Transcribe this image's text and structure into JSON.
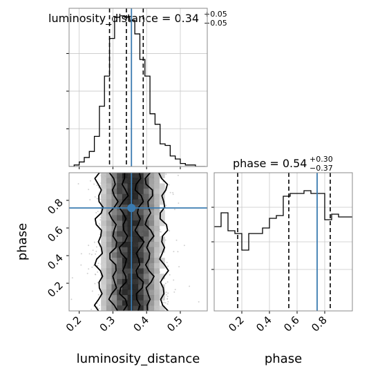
{
  "colors": {
    "truth": "#3a7bb0",
    "hist": "#000000",
    "grid": "#c8c8c8",
    "frame": "#888888",
    "points": "#9a9a9a"
  },
  "chart_data": {
    "type": "corner",
    "parameters": [
      "luminosity_distance",
      "phase"
    ],
    "truths": {
      "luminosity_distance": 0.355,
      "phase": 0.745
    },
    "panels": [
      {
        "name": "luminosity_distance-marginal",
        "type": "histogram-step",
        "title_label": "luminosity_distance = 0.34",
        "title_sup": "+0.05",
        "title_sub": "−0.05",
        "xlim": [
          0.17,
          0.58
        ],
        "bin_edges": [
          0.17,
          0.185,
          0.2,
          0.215,
          0.23,
          0.245,
          0.26,
          0.275,
          0.29,
          0.305,
          0.32,
          0.335,
          0.35,
          0.365,
          0.38,
          0.395,
          0.41,
          0.425,
          0.44,
          0.455,
          0.47,
          0.485,
          0.5,
          0.515,
          0.53,
          0.545,
          0.56,
          0.575
        ],
        "counts": [
          0,
          1,
          3,
          6,
          10,
          20,
          40,
          60,
          85,
          99,
          100,
          99,
          97,
          88,
          71,
          60,
          35,
          28,
          15,
          14,
          7,
          5,
          2,
          1,
          1,
          0,
          0
        ],
        "quantiles": [
          0.29,
          0.34,
          0.39
        ],
        "yticks": [
          25,
          50,
          75
        ]
      },
      {
        "name": "phase-marginal",
        "type": "histogram-step",
        "title_label": "phase = 0.54",
        "title_sup": "+0.30",
        "title_sub": "−0.37",
        "xlim": [
          0.0,
          1.0
        ],
        "bin_edges": [
          0.0,
          0.05,
          0.1,
          0.15,
          0.2,
          0.25,
          0.3,
          0.35,
          0.4,
          0.45,
          0.5,
          0.55,
          0.6,
          0.65,
          0.7,
          0.75,
          0.8,
          0.85,
          0.9,
          0.95,
          1.0
        ],
        "counts": [
          61,
          71,
          58,
          56,
          44,
          56,
          56,
          60,
          67,
          69,
          83,
          85,
          85,
          87,
          85,
          85,
          66,
          70,
          68,
          68
        ],
        "quantiles": [
          0.17,
          0.54,
          0.84
        ],
        "yticks": [
          50,
          75
        ]
      },
      {
        "name": "2d-density",
        "type": "2d-hist-contour",
        "xlim": [
          0.17,
          0.58
        ],
        "ylim": [
          0.0,
          1.0
        ],
        "x_center": 0.355,
        "x_spread": 0.05
      }
    ],
    "x_ticks_bottom_left": [
      "0.2",
      "0.3",
      "0.4",
      "0.5"
    ],
    "x_tick_values_bottom_left": [
      0.2,
      0.3,
      0.4,
      0.5
    ],
    "y_ticks_left": [
      "0.2",
      "0.4",
      "0.6",
      "0.8"
    ],
    "y_tick_values_left": [
      0.2,
      0.4,
      0.6,
      0.8
    ],
    "x_ticks_bottom_right": [
      "0.2",
      "0.4",
      "0.6",
      "0.8"
    ],
    "x_tick_values_bottom_right": [
      0.2,
      0.4,
      0.6,
      0.8
    ],
    "xlabel_left": "luminosity_distance",
    "xlabel_right": "phase",
    "ylabel": "phase"
  }
}
